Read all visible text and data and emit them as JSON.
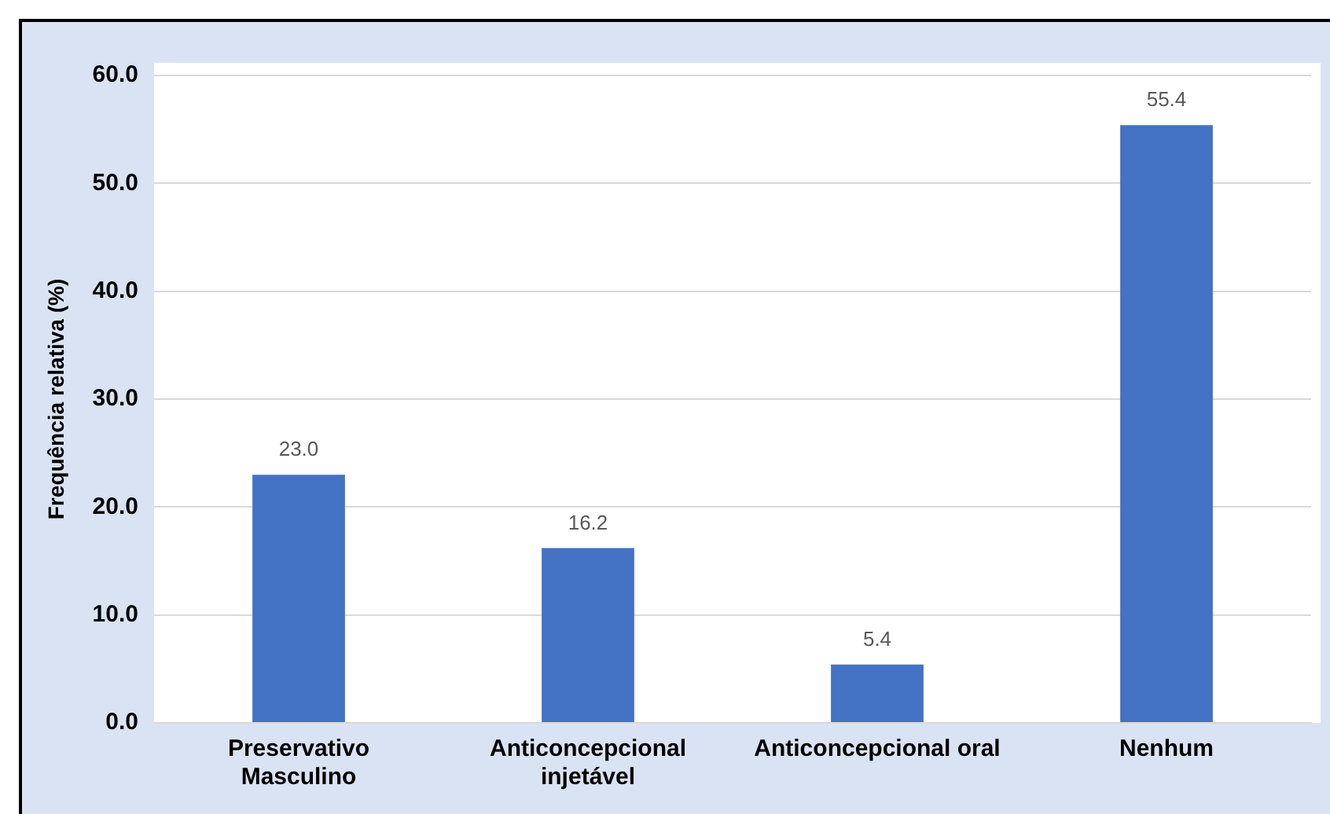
{
  "chart_data": {
    "type": "bar",
    "ylabel": "Frequência relativa (%)",
    "categories": [
      "Preservativo Masculino",
      "Anticoncepcional injetável",
      "Anticoncepcional oral",
      "Nenhum"
    ],
    "values": [
      23.0,
      16.2,
      5.4,
      55.4
    ],
    "value_labels": [
      "23.0",
      "16.2",
      "5.4",
      "55.4"
    ],
    "color": "#4472c4",
    "ylim": [
      0,
      60
    ],
    "yticks": [
      {
        "value": 0,
        "label": "0.0"
      },
      {
        "value": 10,
        "label": "10.0"
      },
      {
        "value": 20,
        "label": "20.0"
      },
      {
        "value": 30,
        "label": "30.0"
      },
      {
        "value": 40,
        "label": "40.0"
      },
      {
        "value": 50,
        "label": "50.0"
      },
      {
        "value": 60,
        "label": "60.0"
      }
    ],
    "grid": "y"
  }
}
